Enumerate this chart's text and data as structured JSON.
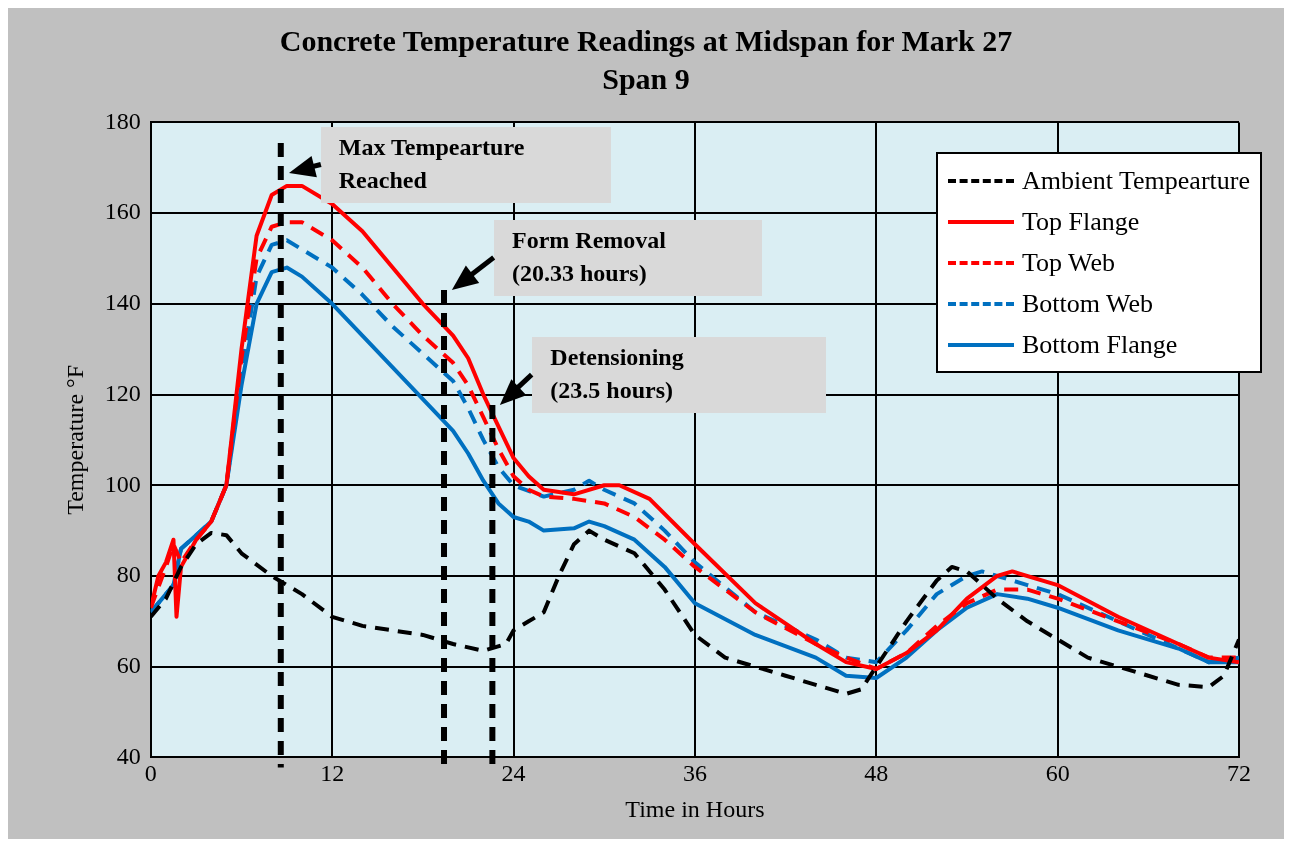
{
  "chart_data": {
    "type": "line",
    "title": "Concrete Temperature Readings at Midspan for Mark 27 Span 9",
    "xlabel": "Time in Hours",
    "ylabel": "Temperature °F",
    "xlim": [
      0,
      72
    ],
    "xticks": [
      0,
      12,
      24,
      36,
      48,
      60,
      72
    ],
    "ylim": [
      40,
      180
    ],
    "yticks": [
      40,
      60,
      80,
      100,
      120,
      140,
      160,
      180
    ],
    "grid": true,
    "legend": "top right",
    "marker": "none",
    "series": [
      {
        "name": "Ambient Tempearture",
        "color": "#000000",
        "line_style": "dashed",
        "x": [
          0,
          1,
          2,
          3,
          4,
          5,
          6,
          8,
          10,
          12,
          14,
          16,
          18,
          20,
          22,
          23.5,
          24,
          25,
          26,
          27,
          28,
          29,
          30,
          32,
          34,
          36,
          38,
          42,
          44,
          46,
          47,
          48,
          50,
          52,
          53,
          54,
          56,
          58,
          60,
          62,
          64,
          66,
          68,
          70,
          71,
          72
        ],
        "values": [
          71,
          75,
          82,
          87,
          89.5,
          89,
          85,
          80,
          76,
          71,
          69,
          68,
          67,
          65,
          63.5,
          65,
          68,
          70,
          72,
          80,
          87,
          90,
          88,
          85,
          77,
          67,
          62,
          58,
          56,
          54,
          55,
          60,
          70,
          79,
          82,
          81,
          75,
          70,
          66,
          62,
          60,
          58,
          56,
          55.5,
          58,
          66
        ]
      },
      {
        "name": "Top Flange",
        "color": "#ff0000",
        "line_style": "solid",
        "x": [
          0,
          0.5,
          1,
          1.5,
          1.7,
          2,
          3,
          4,
          5,
          6,
          7,
          8,
          9,
          10,
          12,
          14,
          16,
          18,
          20,
          21,
          22,
          23,
          24,
          25,
          26,
          28,
          30,
          31,
          33,
          36,
          40,
          44,
          46,
          48,
          50,
          52,
          54,
          56,
          57,
          60,
          64,
          68,
          70,
          72
        ],
        "values": [
          73,
          80,
          83,
          88,
          71,
          82,
          88,
          92,
          100,
          130,
          155,
          164,
          166,
          166,
          162,
          156,
          148,
          140,
          133,
          128,
          120,
          113,
          106,
          102,
          99,
          98,
          100,
          100,
          97,
          87,
          74,
          65,
          61,
          59.5,
          63,
          68,
          75,
          80,
          81,
          78,
          71,
          65,
          62,
          61
        ]
      },
      {
        "name": "Top Web",
        "color": "#ff0000",
        "line_style": "dashed",
        "x": [
          0,
          1,
          1.5,
          2,
          3,
          4,
          5,
          6,
          7,
          8,
          9,
          10,
          12,
          14,
          16,
          18,
          20,
          21,
          22,
          23,
          24,
          25,
          26,
          28,
          30,
          32,
          34,
          36,
          40,
          44,
          46,
          48,
          50,
          52,
          54,
          56,
          58,
          60,
          64,
          68,
          70,
          72
        ],
        "values": [
          73,
          82,
          87,
          83,
          88,
          92,
          100,
          128,
          150,
          157,
          158,
          158,
          154,
          148,
          140,
          133,
          127,
          122,
          115,
          108,
          102,
          99,
          97.5,
          97,
          96,
          93,
          88,
          82,
          72,
          65,
          62,
          59.5,
          63,
          69,
          74,
          77,
          77,
          75,
          70,
          65,
          62,
          62
        ]
      },
      {
        "name": "Bottom Web",
        "color": "#0070c0",
        "line_style": "dashed",
        "x": [
          0,
          1,
          1.5,
          2,
          3,
          4,
          5,
          6,
          7,
          8,
          9,
          10,
          12,
          14,
          16,
          18,
          20,
          21,
          22,
          23,
          24,
          26,
          28,
          29,
          30,
          32,
          34,
          36,
          40,
          44,
          46,
          48,
          50,
          52,
          54,
          55,
          56,
          58,
          60,
          64,
          68,
          70,
          72
        ],
        "values": [
          72,
          76,
          78,
          86,
          89,
          92,
          100,
          125,
          146,
          153,
          154,
          152,
          148,
          142,
          135,
          129,
          123,
          117,
          110,
          104,
          100,
          97.5,
          99,
          101,
          99,
          96,
          90,
          83,
          72,
          66,
          62,
          61,
          68,
          76,
          80,
          81,
          80,
          78,
          76,
          70,
          64,
          61,
          62
        ]
      },
      {
        "name": "Bottom Flange",
        "color": "#0070c0",
        "line_style": "solid",
        "x": [
          0,
          1,
          1.5,
          2,
          3,
          4,
          5,
          6,
          7,
          8,
          9,
          10,
          12,
          14,
          16,
          18,
          20,
          21,
          22,
          23,
          24,
          25,
          26,
          28,
          29,
          30,
          32,
          34,
          36,
          40,
          44,
          46,
          48,
          50,
          52,
          54,
          56,
          58,
          60,
          64,
          68,
          70,
          72
        ],
        "values": [
          72,
          76,
          78,
          86,
          89,
          92,
          100,
          122,
          140,
          147,
          148,
          146,
          140,
          133,
          126,
          119,
          112,
          107,
          101,
          96,
          93,
          92,
          90,
          90.5,
          92,
          91,
          88,
          82,
          74,
          67,
          62,
          58,
          57.5,
          62,
          68,
          73,
          76,
          75,
          73,
          68,
          64,
          61,
          61
        ]
      }
    ],
    "ref_lines": [
      {
        "axis": "x",
        "value": 8.6,
        "label": "Max Tempearture Reached",
        "color": "#000000",
        "line_style": "dashed"
      },
      {
        "axis": "x",
        "value": 19.4,
        "label": "Form Removal (20.33 hours)",
        "color": "#000000",
        "line_style": "dashed"
      },
      {
        "axis": "x",
        "value": 22.6,
        "label": "Detensioning (23.5 hours)",
        "color": "#000000",
        "line_style": "dashed"
      }
    ]
  }
}
